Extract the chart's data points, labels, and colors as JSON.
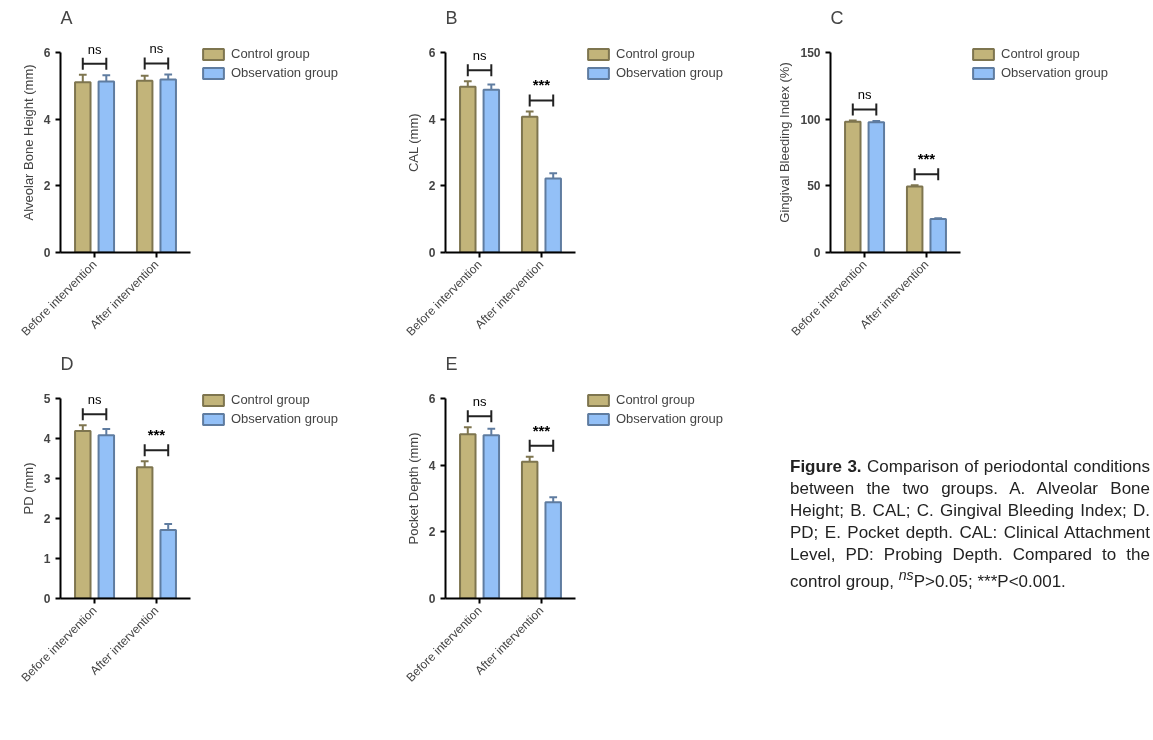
{
  "chart_data": [
    {
      "type": "bar",
      "title": "A",
      "ylabel": "Alveolar Bone Height (mm)",
      "categories": [
        "Before intervention",
        "After intervention"
      ],
      "ylim": [
        0,
        6
      ],
      "yticks": [
        0,
        2,
        4,
        6
      ],
      "legend": "right",
      "series": [
        {
          "name": "Control group",
          "color": "#c2b47a",
          "values": [
            5.11,
            5.15
          ],
          "errors": [
            [
              5.11,
              5.33
            ],
            [
              5.15,
              5.3
            ]
          ]
        },
        {
          "name": "Observation group",
          "color": "#93c0f7",
          "values": [
            5.13,
            5.19
          ],
          "errors": [
            [
              5.13,
              5.32
            ],
            [
              5.19,
              5.34
            ]
          ]
        }
      ],
      "annotations": [
        "ns",
        "ns"
      ]
    },
    {
      "type": "bar",
      "title": "B",
      "ylabel": "CAL (mm)",
      "categories": [
        "Before intervention",
        "After intervention"
      ],
      "ylim": [
        0,
        6
      ],
      "yticks": [
        0,
        2,
        4,
        6
      ],
      "legend": "right",
      "series": [
        {
          "name": "Control group",
          "color": "#c2b47a",
          "values": [
            4.97,
            4.07
          ],
          "errors": [
            [
              4.97,
              5.14
            ],
            [
              4.07,
              4.23
            ]
          ]
        },
        {
          "name": "Observation group",
          "color": "#93c0f7",
          "values": [
            4.88,
            2.22
          ],
          "errors": [
            [
              4.88,
              5.04
            ],
            [
              2.22,
              2.38
            ]
          ]
        }
      ],
      "annotations": [
        "ns",
        "***"
      ]
    },
    {
      "type": "bar",
      "title": "C",
      "ylabel": "Gingival Bleeding Index (%)",
      "categories": [
        "Before intervention",
        "After intervention"
      ],
      "ylim": [
        0,
        150
      ],
      "yticks": [
        0,
        50,
        100,
        150
      ],
      "legend": "right",
      "series": [
        {
          "name": "Control group",
          "color": "#c2b47a",
          "values": [
            98,
            49.5
          ],
          "errors": [
            [
              98,
              99
            ],
            [
              49.5,
              50.5
            ]
          ]
        },
        {
          "name": "Observation group",
          "color": "#93c0f7",
          "values": [
            97.7,
            25.2
          ],
          "errors": [
            [
              97.7,
              98.7
            ],
            [
              25.2,
              25.7
            ]
          ]
        }
      ],
      "annotations": [
        "ns",
        "***"
      ]
    },
    {
      "type": "bar",
      "title": "D",
      "ylabel": "PD (mm)",
      "categories": [
        "Before intervention",
        "After intervention"
      ],
      "ylim": [
        0,
        5
      ],
      "yticks": [
        0,
        1,
        2,
        3,
        4,
        5
      ],
      "legend": "right",
      "series": [
        {
          "name": "Control group",
          "color": "#c2b47a",
          "values": [
            4.19,
            3.28
          ],
          "errors": [
            [
              4.19,
              4.33
            ],
            [
              3.28,
              3.43
            ]
          ]
        },
        {
          "name": "Observation group",
          "color": "#93c0f7",
          "values": [
            4.08,
            1.71
          ],
          "errors": [
            [
              4.08,
              4.24
            ],
            [
              1.71,
              1.86
            ]
          ]
        }
      ],
      "annotations": [
        "ns",
        "***"
      ]
    },
    {
      "type": "bar",
      "title": "E",
      "ylabel": "Pocket Depth (mm)",
      "categories": [
        "Before intervention",
        "After intervention"
      ],
      "ylim": [
        0,
        6
      ],
      "yticks": [
        0,
        2,
        4,
        6
      ],
      "legend": "right",
      "series": [
        {
          "name": "Control group",
          "color": "#c2b47a",
          "values": [
            4.93,
            4.1
          ],
          "errors": [
            [
              4.93,
              5.14
            ],
            [
              4.1,
              4.25
            ]
          ]
        },
        {
          "name": "Observation group",
          "color": "#93c0f7",
          "values": [
            4.9,
            2.89
          ],
          "errors": [
            [
              4.9,
              5.09
            ],
            [
              2.89,
              3.04
            ]
          ]
        }
      ],
      "annotations": [
        "ns",
        "***"
      ]
    },
    {
      "type": "other",
      "title": "Figure 3.",
      "annotations": [
        "Comparison of periodontal conditions between the two groups. A. Alveolar Bone Height; B. CAL; C. Gingival Bleeding Index; D. PD; E. Pocket depth. CAL: Clinical Attachment Level, PD: Probing Depth. Compared to the control group, $^{ns}$P>0.05; ***P<0.001."
      ]
    }
  ]
}
